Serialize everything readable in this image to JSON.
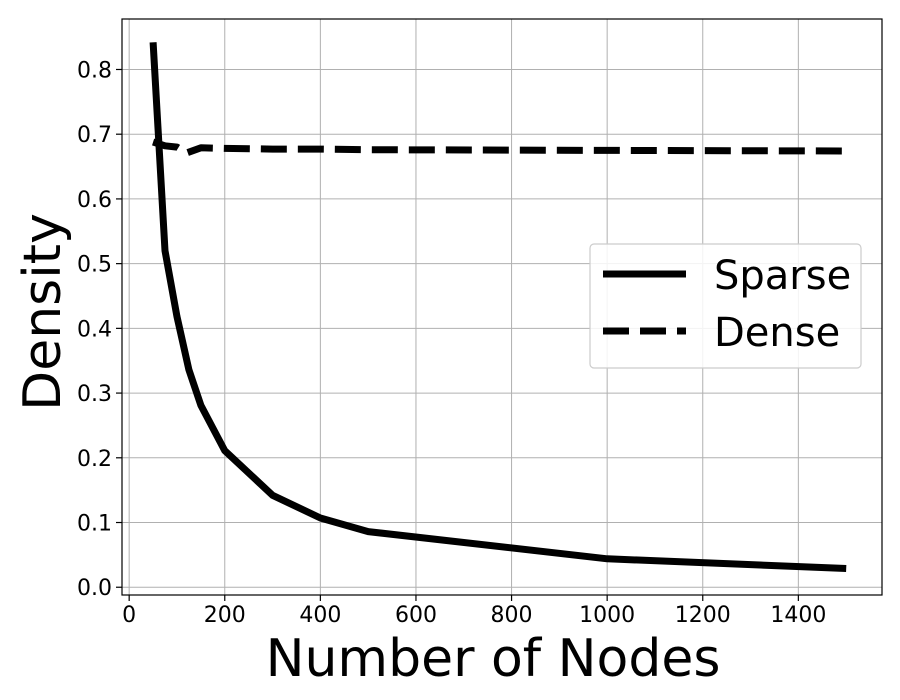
{
  "chart_data": {
    "type": "line",
    "title": "",
    "xlabel": "Number of Nodes",
    "ylabel": "Density",
    "xlim": [
      -15,
      1575
    ],
    "ylim": [
      -0.012,
      0.878
    ],
    "xticks": [
      0,
      200,
      400,
      600,
      800,
      1000,
      1200,
      1400
    ],
    "xtick_labels": [
      "0",
      "200",
      "400",
      "600",
      "800",
      "1000",
      "1200",
      "1400"
    ],
    "yticks": [
      0.0,
      0.1,
      0.2,
      0.3,
      0.4,
      0.5,
      0.6,
      0.7,
      0.8
    ],
    "ytick_labels": [
      "0.0",
      "0.1",
      "0.2",
      "0.3",
      "0.4",
      "0.5",
      "0.6",
      "0.7",
      "0.8"
    ],
    "grid": true,
    "legend": "center-right",
    "series": [
      {
        "name": "Sparse",
        "style": "solid",
        "color": "#000000",
        "x": [
          50,
          75,
          100,
          125,
          150,
          200,
          300,
          400,
          500,
          1000,
          1500
        ],
        "y": [
          0.842,
          0.52,
          0.418,
          0.336,
          0.281,
          0.211,
          0.142,
          0.107,
          0.086,
          0.044,
          0.029
        ]
      },
      {
        "name": "Dense",
        "style": "dashed",
        "color": "#000000",
        "x": [
          50,
          75,
          100,
          120,
          150,
          200,
          300,
          400,
          500,
          1000,
          1500
        ],
        "y": [
          0.688,
          0.682,
          0.68,
          0.671,
          0.679,
          0.678,
          0.677,
          0.677,
          0.676,
          0.675,
          0.674
        ]
      }
    ]
  }
}
